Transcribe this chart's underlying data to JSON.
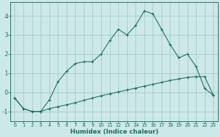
{
  "xlabel": "Humidex (Indice chaleur)",
  "background_color": "#cce8e8",
  "grid_color": "#aacccc",
  "line_color": "#1a6b5e",
  "x_values": [
    0,
    1,
    2,
    3,
    4,
    5,
    6,
    7,
    8,
    9,
    10,
    11,
    12,
    13,
    14,
    15,
    16,
    17,
    18,
    19,
    20,
    21,
    22,
    23
  ],
  "line1_y": [
    -0.3,
    -0.85,
    -1.0,
    -1.0,
    -0.85,
    -0.75,
    -0.65,
    -0.55,
    -0.42,
    -0.3,
    -0.18,
    -0.08,
    0.02,
    0.12,
    0.22,
    0.32,
    0.42,
    0.52,
    0.62,
    0.7,
    0.78,
    0.82,
    0.82,
    -0.15
  ],
  "line2_y": [
    -0.3,
    -0.85,
    -1.0,
    -1.0,
    -0.4,
    0.55,
    1.1,
    1.5,
    1.6,
    1.6,
    2.0,
    2.7,
    3.3,
    3.0,
    3.5,
    4.25,
    4.1,
    3.3,
    2.5,
    1.8,
    2.0,
    1.35,
    0.2,
    -0.15
  ],
  "xlim": [
    -0.5,
    23.5
  ],
  "ylim": [
    -1.5,
    4.7
  ],
  "yticks": [
    -1,
    0,
    1,
    2,
    3,
    4
  ],
  "xticks": [
    0,
    1,
    2,
    3,
    4,
    5,
    6,
    7,
    8,
    9,
    10,
    11,
    12,
    13,
    14,
    15,
    16,
    17,
    18,
    19,
    20,
    21,
    22,
    23
  ]
}
